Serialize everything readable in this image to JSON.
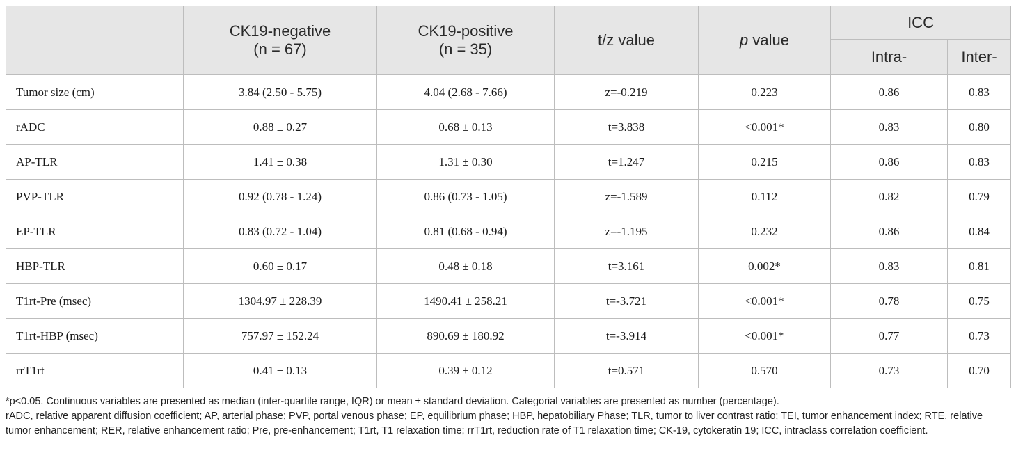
{
  "table": {
    "headers": {
      "col1": "",
      "col2_line1": "CK19-negative",
      "col2_line2": "(n = 67)",
      "col3_line1": "CK19-positive",
      "col3_line2": "(n = 35)",
      "col4": "t/z value",
      "col5_italic": "p",
      "col5_rest": " value",
      "icc": "ICC",
      "icc_intra": "Intra-",
      "icc_inter": "Inter-"
    },
    "rows": [
      {
        "variable": "Tumor size (cm)",
        "neg": "3.84 (2.50 - 5.75)",
        "pos": "4.04 (2.68 - 7.66)",
        "tz": "z=-0.219",
        "p": "0.223",
        "intra": "0.86",
        "inter": "0.83"
      },
      {
        "variable": "rADC",
        "neg": "0.88 ± 0.27",
        "pos": "0.68 ± 0.13",
        "tz": "t=3.838",
        "p": "<0.001*",
        "intra": "0.83",
        "inter": "0.80"
      },
      {
        "variable": "AP-TLR",
        "neg": "1.41 ± 0.38",
        "pos": "1.31 ± 0.30",
        "tz": "t=1.247",
        "p": "0.215",
        "intra": "0.86",
        "inter": "0.83"
      },
      {
        "variable": "PVP-TLR",
        "neg": "0.92 (0.78 - 1.24)",
        "pos": "0.86 (0.73 - 1.05)",
        "tz": "z=-1.589",
        "p": "0.112",
        "intra": "0.82",
        "inter": "0.79"
      },
      {
        "variable": "EP-TLR",
        "neg": "0.83 (0.72 - 1.04)",
        "pos": "0.81 (0.68 - 0.94)",
        "tz": "z=-1.195",
        "p": "0.232",
        "intra": "0.86",
        "inter": "0.84"
      },
      {
        "variable": "HBP-TLR",
        "neg": "0.60 ± 0.17",
        "pos": "0.48 ± 0.18",
        "tz": "t=3.161",
        "p": "0.002*",
        "intra": "0.83",
        "inter": "0.81"
      },
      {
        "variable": "T1rt-Pre (msec)",
        "neg": "1304.97 ± 228.39",
        "pos": "1490.41 ± 258.21",
        "tz": "t=-3.721",
        "p": "<0.001*",
        "intra": "0.78",
        "inter": "0.75"
      },
      {
        "variable": "T1rt-HBP (msec)",
        "neg": "757.97 ± 152.24",
        "pos": "890.69 ± 180.92",
        "tz": "t=-3.914",
        "p": "<0.001*",
        "intra": "0.77",
        "inter": "0.73"
      },
      {
        "variable": "rrT1rt",
        "neg": "0.41 ± 0.13",
        "pos": "0.39 ± 0.12",
        "tz": "t=0.571",
        "p": "0.570",
        "intra": "0.73",
        "inter": "0.70"
      }
    ]
  },
  "footnote": {
    "line1": "*p<0.05. Continuous variables are presented as median (inter-quartile range, IQR) or mean ± standard deviation. Categorial variables are presented as number (percentage).",
    "line2": "rADC, relative apparent diffusion coefficient; AP, arterial phase; PVP, portal venous phase; EP, equilibrium phase; HBP, hepatobiliary Phase; TLR, tumor to liver contrast ratio; TEI, tumor enhancement index; RTE, relative tumor enhancement; RER, relative enhancement ratio; Pre, pre-enhancement; T1rt, T1 relaxation time; rrT1rt, reduction rate of T1 relaxation time; CK-19, cytokeratin 19; ICC, intraclass correlation coefficient."
  }
}
